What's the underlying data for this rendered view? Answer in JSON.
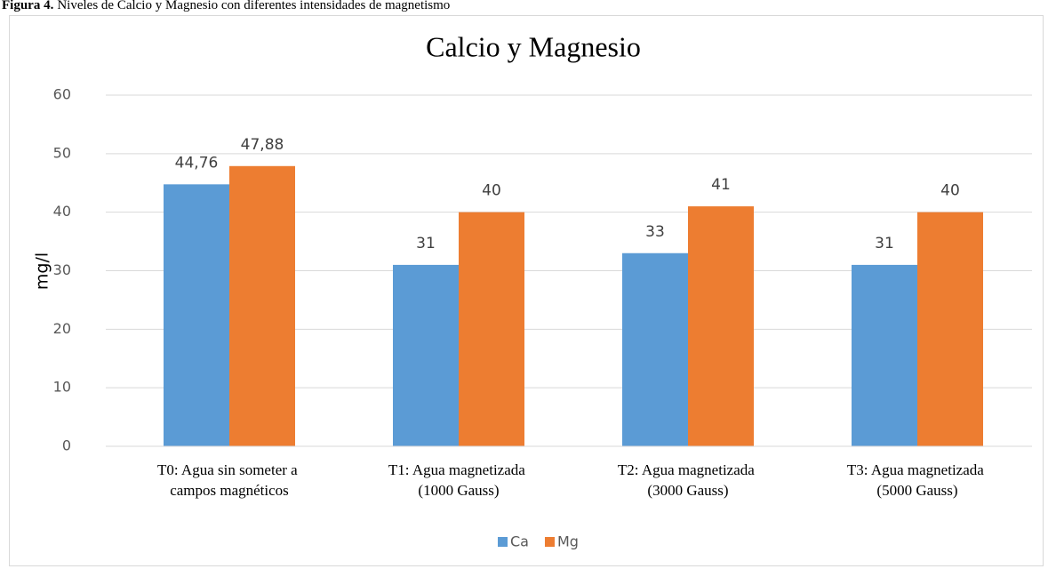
{
  "figure_caption": {
    "label": "Figura 4.",
    "text": "Niveles de Calcio y Magnesio con diferentes intensidades de magnetismo"
  },
  "chart_data": {
    "type": "bar",
    "title": "Calcio y Magnesio",
    "y_label": "mg/l",
    "categories": [
      "T0: Agua sin someter a campos magnéticos",
      "T1: Agua magnetizada (1000 Gauss)",
      "T2: Agua magnetizada (3000 Gauss)",
      "T3: Agua magnetizada (5000 Gauss)"
    ],
    "series": [
      {
        "name": "Ca",
        "color": "#5b9bd5",
        "values": [
          44.76,
          31,
          33,
          31
        ],
        "value_labels": [
          "44,76",
          "31",
          "33",
          "31"
        ]
      },
      {
        "name": "Mg",
        "color": "#ed7d31",
        "values": [
          47.88,
          40,
          41,
          40
        ],
        "value_labels": [
          "47,88",
          "40",
          "41",
          "40"
        ]
      }
    ],
    "ylim": [
      0,
      60
    ],
    "yticks": [
      0,
      10,
      20,
      30,
      40,
      50,
      60
    ],
    "grid": true,
    "legend": "bottom"
  }
}
